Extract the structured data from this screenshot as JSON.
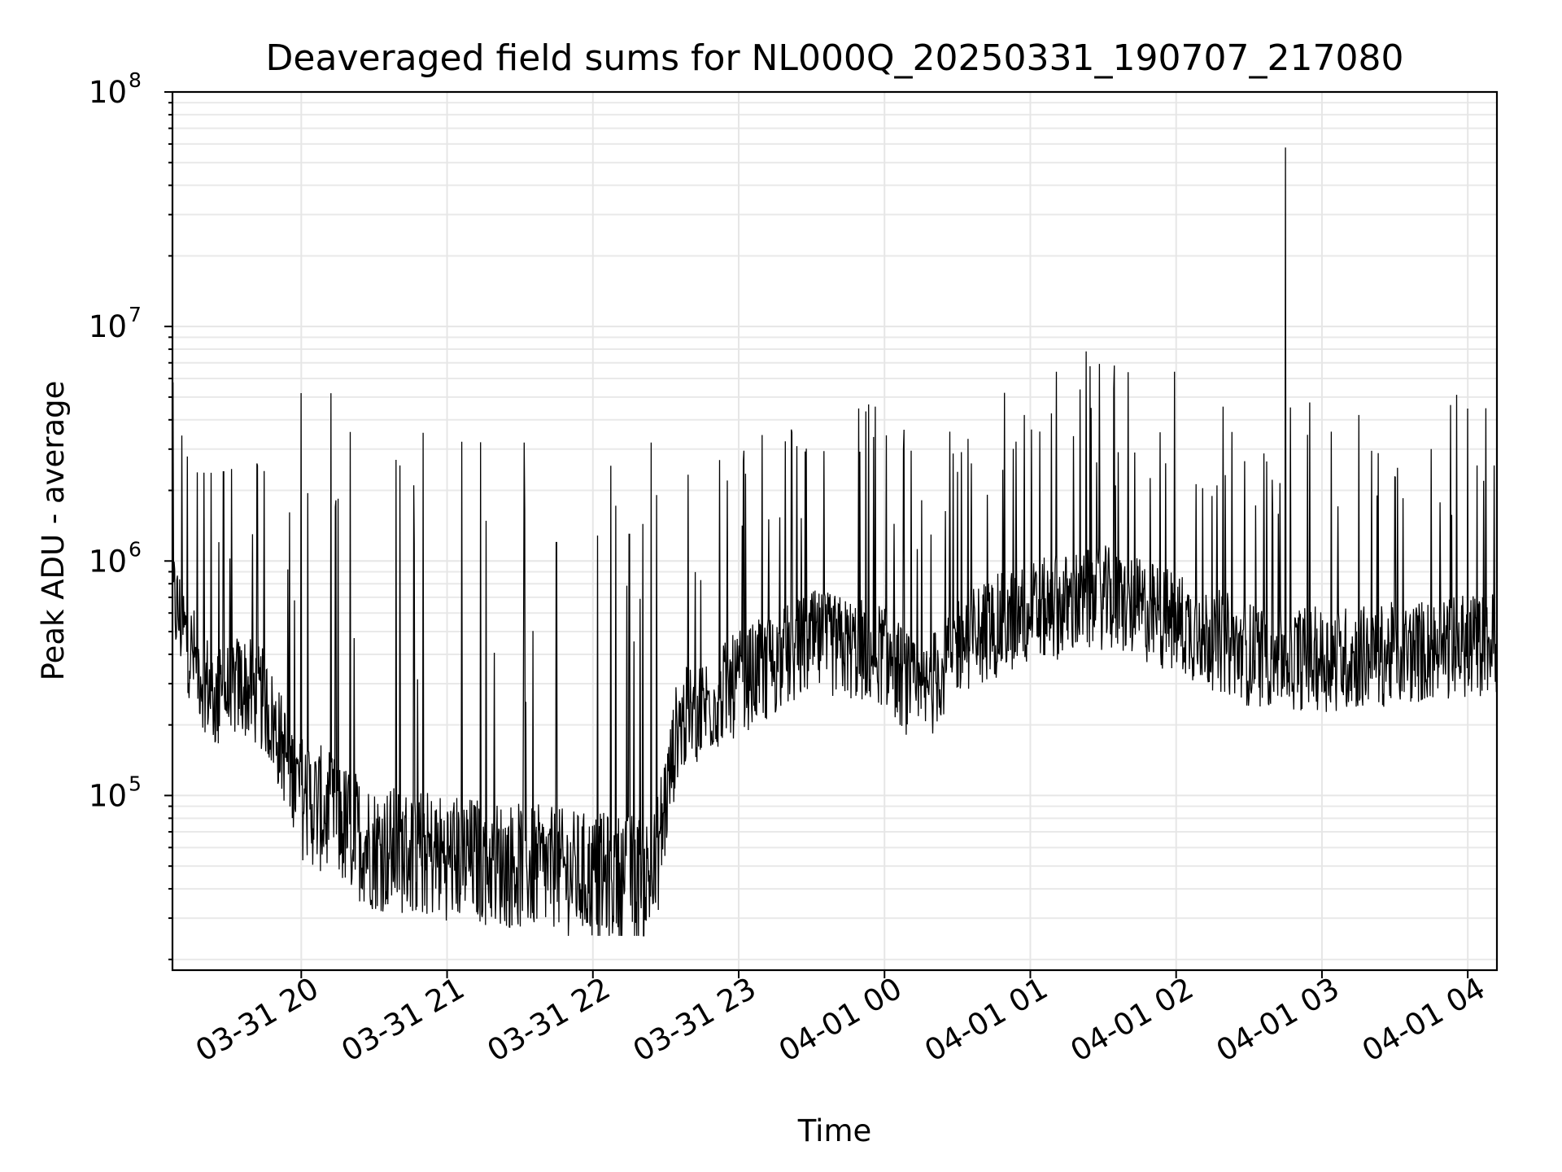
{
  "chart_data": {
    "type": "line",
    "title": "Deaveraged field sums for NL000Q_20250331_190707_217080",
    "xlabel": "Time",
    "ylabel": "Peak ADU - average",
    "xlim": [
      "2025-03-31 19:07",
      "2025-04-01 04:12"
    ],
    "yscale": "log",
    "ylim": [
      18000,
      100000000
    ],
    "y_ticks": [
      {
        "base": "10",
        "exp": "5",
        "value": 100000
      },
      {
        "base": "10",
        "exp": "6",
        "value": 1000000
      },
      {
        "base": "10",
        "exp": "7",
        "value": 10000000
      },
      {
        "base": "10",
        "exp": "8",
        "value": 100000000
      }
    ],
    "x_ticks": [
      {
        "label": "03-31 20",
        "time": "2025-03-31 20:00"
      },
      {
        "label": "03-31 21",
        "time": "2025-03-31 21:00"
      },
      {
        "label": "03-31 22",
        "time": "2025-03-31 22:00"
      },
      {
        "label": "03-31 23",
        "time": "2025-03-31 23:00"
      },
      {
        "label": "04-01 00",
        "time": "2025-04-01 00:00"
      },
      {
        "label": "04-01 01",
        "time": "2025-04-01 01:00"
      },
      {
        "label": "04-01 02",
        "time": "2025-04-01 02:00"
      },
      {
        "label": "04-01 03",
        "time": "2025-04-01 03:00"
      },
      {
        "label": "04-01 04",
        "time": "2025-04-01 04:00"
      }
    ],
    "grid": true,
    "line_color": "#000000",
    "series_trend": [
      {
        "time": "2025-03-31 19:07",
        "value": 700000
      },
      {
        "time": "2025-03-31 19:15",
        "value": 400000
      },
      {
        "time": "2025-03-31 19:25",
        "value": 250000
      },
      {
        "time": "2025-03-31 19:35",
        "value": 300000
      },
      {
        "time": "2025-03-31 19:45",
        "value": 250000
      },
      {
        "time": "2025-03-31 20:00",
        "value": 100000
      },
      {
        "time": "2025-03-31 20:30",
        "value": 60000
      },
      {
        "time": "2025-03-31 21:00",
        "value": 55000
      },
      {
        "time": "2025-03-31 21:30",
        "value": 50000
      },
      {
        "time": "2025-03-31 22:00",
        "value": 45000
      },
      {
        "time": "2025-03-31 22:25",
        "value": 45000
      },
      {
        "time": "2025-03-31 22:35",
        "value": 200000
      },
      {
        "time": "2025-03-31 23:00",
        "value": 300000
      },
      {
        "time": "2025-03-31 23:30",
        "value": 450000
      },
      {
        "time": "2025-04-01 00:00",
        "value": 400000
      },
      {
        "time": "2025-04-01 00:15",
        "value": 250000
      },
      {
        "time": "2025-04-01 00:30",
        "value": 450000
      },
      {
        "time": "2025-04-01 01:00",
        "value": 600000
      },
      {
        "time": "2025-04-01 01:30",
        "value": 700000
      },
      {
        "time": "2025-04-01 02:00",
        "value": 550000
      },
      {
        "time": "2025-04-01 02:30",
        "value": 400000
      },
      {
        "time": "2025-04-01 03:00",
        "value": 380000
      },
      {
        "time": "2025-04-01 03:30",
        "value": 400000
      },
      {
        "time": "2025-04-01 04:12",
        "value": 450000
      }
    ],
    "spikes": [
      {
        "time": "2025-03-31 19:28",
        "value": 2400000
      },
      {
        "time": "2025-03-31 19:40",
        "value": 1300000
      },
      {
        "time": "2025-03-31 20:00",
        "value": 5200000
      },
      {
        "time": "2025-03-31 20:14",
        "value": 1700000
      },
      {
        "time": "2025-03-31 20:39",
        "value": 2700000
      },
      {
        "time": "2025-03-31 21:45",
        "value": 1200000
      },
      {
        "time": "2025-03-31 22:15",
        "value": 1300000
      },
      {
        "time": "2025-03-31 22:24",
        "value": 3200000
      },
      {
        "time": "2025-04-01 00:30",
        "value": 2400000
      },
      {
        "time": "2025-04-01 01:35",
        "value": 2100000
      },
      {
        "time": "2025-04-01 02:45",
        "value": 58000000
      },
      {
        "time": "2025-04-01 03:45",
        "value": 3000000
      }
    ]
  }
}
